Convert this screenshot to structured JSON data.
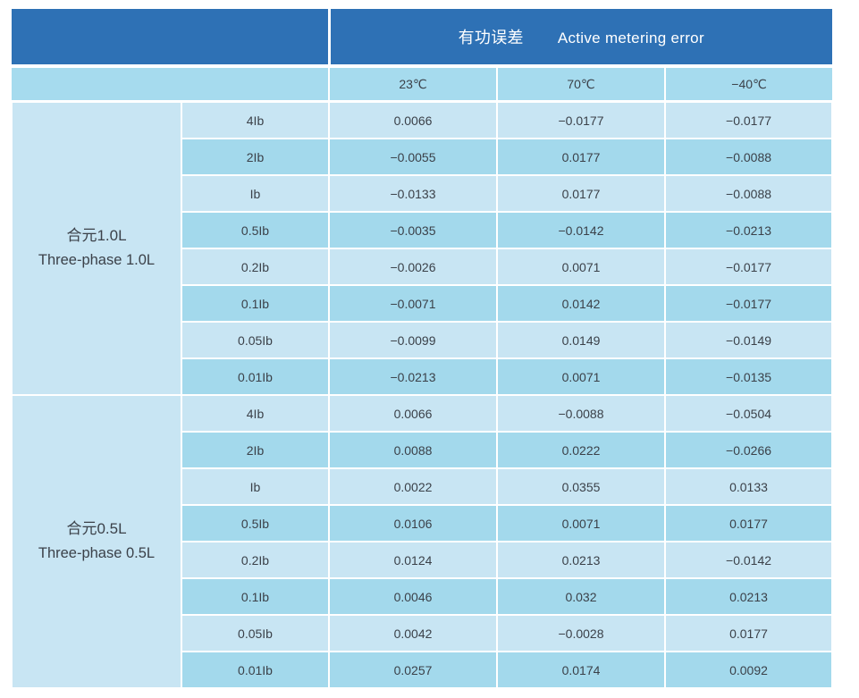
{
  "header": {
    "title_cn": "有功误差",
    "title_en": "Active metering error"
  },
  "chart_data": {
    "type": "table",
    "title": "有功误差 Active metering error",
    "title_cn": "有功误差",
    "title_en": "Active metering error",
    "temp_columns": [
      "23℃",
      "70℃",
      "−40℃"
    ],
    "groups": [
      {
        "label_cn": "合元1.0L",
        "label_en": "Three-phase 1.0L",
        "rows": [
          {
            "load": "4Ib",
            "values": [
              "0.0066",
              "−0.0177",
              "−0.0177"
            ]
          },
          {
            "load": "2Ib",
            "values": [
              "−0.0055",
              "0.0177",
              "−0.0088"
            ]
          },
          {
            "load": "Ib",
            "values": [
              "−0.0133",
              "0.0177",
              "−0.0088"
            ]
          },
          {
            "load": "0.5Ib",
            "values": [
              "−0.0035",
              "−0.0142",
              "−0.0213"
            ]
          },
          {
            "load": "0.2Ib",
            "values": [
              "−0.0026",
              "0.0071",
              "−0.0177"
            ]
          },
          {
            "load": "0.1Ib",
            "values": [
              "−0.0071",
              "0.0142",
              "−0.0177"
            ]
          },
          {
            "load": "0.05Ib",
            "values": [
              "−0.0099",
              "0.0149",
              "−0.0149"
            ]
          },
          {
            "load": "0.01Ib",
            "values": [
              "−0.0213",
              "0.0071",
              "−0.0135"
            ]
          }
        ]
      },
      {
        "label_cn": "合元0.5L",
        "label_en": "Three-phase 0.5L",
        "rows": [
          {
            "load": "4Ib",
            "values": [
              "0.0066",
              "−0.0088",
              "−0.0504"
            ]
          },
          {
            "load": "2Ib",
            "values": [
              "0.0088",
              "0.0222",
              "−0.0266"
            ]
          },
          {
            "load": "Ib",
            "values": [
              "0.0022",
              "0.0355",
              "0.0133"
            ]
          },
          {
            "load": "0.5Ib",
            "values": [
              "0.0106",
              "0.0071",
              "0.0177"
            ]
          },
          {
            "load": "0.2Ib",
            "values": [
              "0.0124",
              "0.0213",
              "−0.0142"
            ]
          },
          {
            "load": "0.1Ib",
            "values": [
              "0.0046",
              "0.032",
              "0.0213"
            ]
          },
          {
            "load": "0.05Ib",
            "values": [
              "0.0042",
              "−0.0028",
              "0.0177"
            ]
          },
          {
            "load": "0.01Ib",
            "values": [
              "0.0257",
              "0.0174",
              "0.0092"
            ]
          }
        ]
      }
    ],
    "layout": {
      "legend": "none",
      "grid": "white cell dividers",
      "row_striping": "alternating light/dark blue"
    }
  },
  "colors": {
    "header_bg": "#2e71b5",
    "header_text": "#ffffff",
    "row_light": "#c8e5f3",
    "row_dark": "#a3d9ec",
    "temp_row_bg": "#a6dbee",
    "group_column_bg": "#b9def0",
    "body_text": "#3b4149",
    "divider": "#ffffff"
  }
}
